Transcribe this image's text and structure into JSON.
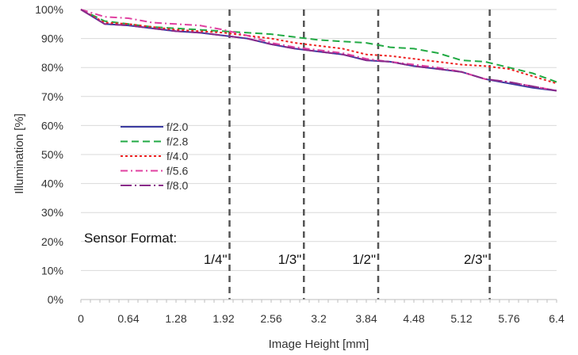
{
  "chart_data": {
    "type": "line",
    "title": "",
    "xlabel": "Image Height [mm]",
    "ylabel": "Illumination [%]",
    "xlim": [
      0,
      6.4
    ],
    "ylim": [
      0,
      100
    ],
    "x_ticks": [
      0,
      0.64,
      1.28,
      1.92,
      2.56,
      3.2,
      3.84,
      4.48,
      5.12,
      5.76,
      6.4
    ],
    "x_tick_labels": [
      "0",
      "0.64",
      "1.28",
      "1.92",
      "2.56",
      "3.2",
      "3.84",
      "4.48",
      "5.12",
      "5.76",
      "6.4"
    ],
    "y_ticks": [
      0,
      10,
      20,
      30,
      40,
      50,
      60,
      70,
      80,
      90,
      100
    ],
    "y_tick_labels": [
      "0%",
      "10%",
      "20%",
      "30%",
      "40%",
      "50%",
      "60%",
      "70%",
      "80%",
      "90%",
      "100%"
    ],
    "grid": true,
    "legend_position": "left-middle",
    "x": [
      0,
      0.32,
      0.64,
      0.96,
      1.28,
      1.6,
      1.92,
      2.24,
      2.56,
      2.88,
      3.2,
      3.52,
      3.84,
      4.16,
      4.48,
      4.8,
      5.12,
      5.44,
      5.76,
      6.08,
      6.4
    ],
    "series": [
      {
        "name": "f/2.0",
        "color": "#3a3aa0",
        "dash": "solid",
        "values": [
          100,
          95,
          94.5,
          93.5,
          92.5,
          92,
          91,
          90,
          88,
          86.5,
          85.5,
          84.5,
          82.5,
          82,
          80.5,
          79.5,
          78.5,
          76,
          74.5,
          73,
          72
        ]
      },
      {
        "name": "f/2.8",
        "color": "#22aa44",
        "dash": "dash",
        "values": [
          100,
          96,
          95,
          94,
          93.5,
          93,
          92.5,
          92,
          91.5,
          90.5,
          89.5,
          89,
          88.5,
          87,
          86.5,
          85,
          82.5,
          82,
          80,
          78,
          75
        ]
      },
      {
        "name": "f/4.0",
        "color": "#ee2222",
        "dash": "dot",
        "values": [
          100,
          95.5,
          95,
          94,
          93,
          92.5,
          92,
          91,
          90,
          88.5,
          87.5,
          86.5,
          84.5,
          84,
          83,
          82,
          81,
          80.5,
          79.5,
          77,
          74.5
        ]
      },
      {
        "name": "f/5.6",
        "color": "#e040a0",
        "dash": "dashdot",
        "values": [
          100,
          97.5,
          97,
          95.5,
          95,
          94.5,
          93,
          91,
          88.5,
          87,
          86,
          85,
          83,
          82,
          81,
          80,
          78.5,
          76,
          75,
          73.5,
          72
        ]
      },
      {
        "name": "f/8.0",
        "color": "#8a2a8a",
        "dash": "longdashdot",
        "values": [
          100,
          95,
          94.5,
          93.5,
          92.5,
          92,
          91,
          90,
          88,
          86.5,
          85.5,
          84.5,
          82.5,
          82,
          80.5,
          79.5,
          78.5,
          76,
          75,
          73.5,
          72
        ]
      }
    ],
    "sensor_format": {
      "title": "Sensor Format:",
      "markers": [
        {
          "label": "1/4\"",
          "x": 2
        },
        {
          "label": "1/3\"",
          "x": 3
        },
        {
          "label": "1/2\"",
          "x": 4
        },
        {
          "label": "2/3\"",
          "x": 5.5
        }
      ]
    }
  }
}
